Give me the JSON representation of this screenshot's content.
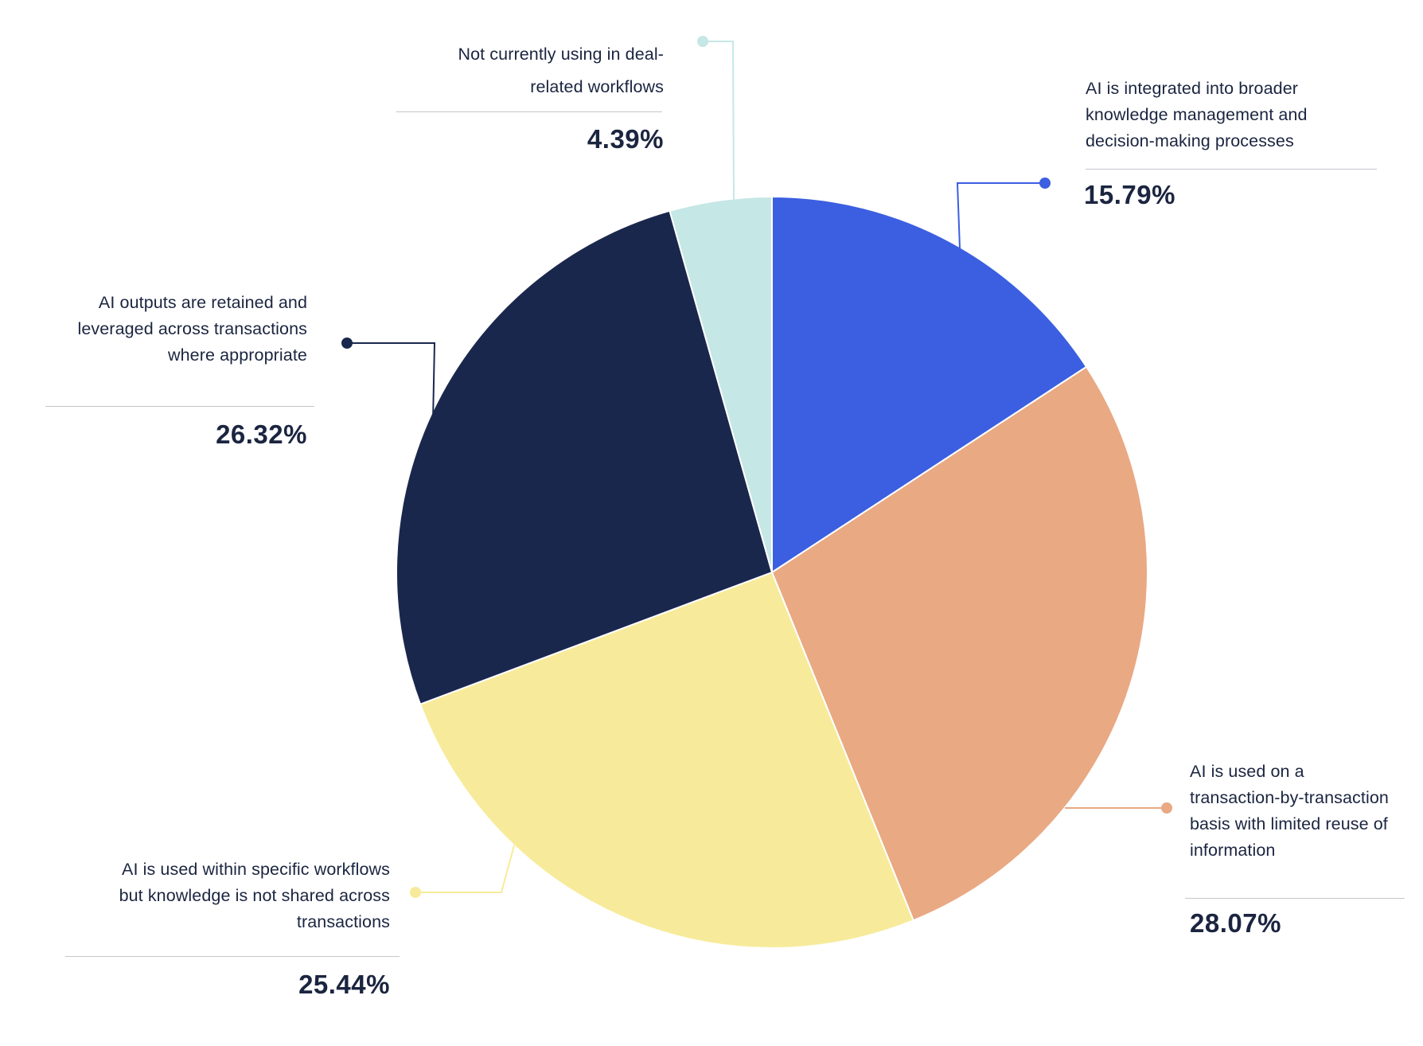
{
  "chart_data": {
    "type": "pie",
    "slices": [
      {
        "label": "AI is integrated into broader knowledge management and decision-making processes",
        "value": 15.79,
        "value_label": "15.79%",
        "color": "#3b5fe0"
      },
      {
        "label": "AI is used on a transaction-by-transaction basis with limited reuse of information",
        "value": 28.07,
        "value_label": "28.07%",
        "color": "#e9a983"
      },
      {
        "label": "AI is used within specific workflows but knowledge is not shared across transactions",
        "value": 25.44,
        "value_label": "25.44%",
        "color": "#f7eb9b"
      },
      {
        "label": "AI outputs are retained and leveraged across transactions where appropriate",
        "value": 26.32,
        "value_label": "26.32%",
        "color": "#1a274d"
      },
      {
        "label": "Not currently using in deal-related workflows",
        "value": 4.39,
        "value_label": "4.39%",
        "color": "#c5e7e5"
      }
    ],
    "start": "12 o'clock",
    "direction": "clockwise",
    "legend": "callout labels with leader lines"
  }
}
